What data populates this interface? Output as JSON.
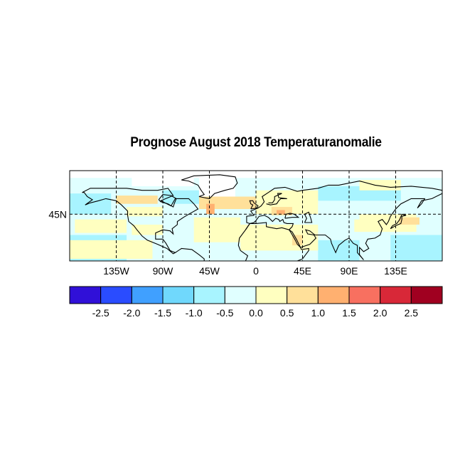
{
  "title": "Prognose August 2018 Temperaturanomalie",
  "map": {
    "projection": "cylindrical equidistant",
    "lon_range": [
      -180,
      180
    ],
    "lat_range": [
      0,
      87
    ],
    "lon_ticks": [
      {
        "lon": -135,
        "label": "135W"
      },
      {
        "lon": -90,
        "label": "90W"
      },
      {
        "lon": -45,
        "label": "45W"
      },
      {
        "lon": 0,
        "label": "0"
      },
      {
        "lon": 45,
        "label": "45E"
      },
      {
        "lon": 90,
        "label": "90E"
      },
      {
        "lon": 135,
        "label": "135E"
      }
    ],
    "lat_ticks": [
      {
        "lat": 45,
        "label": "45N"
      }
    ],
    "grid": "dashed",
    "background_value": -0.25,
    "anomaly_regions": [
      {
        "lon": [
          -180,
          -125
        ],
        "lat": [
          0,
          25
        ],
        "value": -0.75
      },
      {
        "lon": [
          130,
          180
        ],
        "lat": [
          0,
          25
        ],
        "value": -0.75
      },
      {
        "lon": [
          60,
          100
        ],
        "lat": [
          0,
          20
        ],
        "value": -0.75
      },
      {
        "lon": [
          -180,
          -140
        ],
        "lat": [
          45,
          65
        ],
        "value": -0.75
      },
      {
        "lon": [
          60,
          140
        ],
        "lat": [
          58,
          72
        ],
        "value": -0.75
      },
      {
        "lon": [
          -90,
          -55
        ],
        "lat": [
          55,
          68
        ],
        "value": -0.75
      },
      {
        "lon": [
          -175,
          -125
        ],
        "lat": [
          27,
          40
        ],
        "value": 0.25
      },
      {
        "lon": [
          -120,
          -90
        ],
        "lat": [
          25,
          35
        ],
        "value": 0.25
      },
      {
        "lon": [
          -60,
          -15
        ],
        "lat": [
          18,
          42
        ],
        "value": 0.25
      },
      {
        "lon": [
          -55,
          0
        ],
        "lat": [
          50,
          62
        ],
        "value": 0.75
      },
      {
        "lon": [
          -48,
          -40
        ],
        "lat": [
          45,
          55
        ],
        "value": 1.25
      },
      {
        "lon": [
          -135,
          -95
        ],
        "lat": [
          55,
          63
        ],
        "value": 0.75
      },
      {
        "lon": [
          -125,
          -90
        ],
        "lat": [
          43,
          52
        ],
        "value": 0.25
      },
      {
        "lon": [
          0,
          60
        ],
        "lat": [
          45,
          68
        ],
        "value": 0.25
      },
      {
        "lon": [
          15,
          35
        ],
        "lat": [
          44,
          52
        ],
        "value": 0.75
      },
      {
        "lon": [
          20,
          28
        ],
        "lat": [
          45,
          49
        ],
        "value": 1.25
      },
      {
        "lon": [
          -15,
          60
        ],
        "lat": [
          10,
          35
        ],
        "value": 0.25
      },
      {
        "lon": [
          35,
          45
        ],
        "lat": [
          15,
          25
        ],
        "value": 0.75
      },
      {
        "lon": [
          95,
          155
        ],
        "lat": [
          28,
          45
        ],
        "value": 0.25
      },
      {
        "lon": [
          138,
          158
        ],
        "lat": [
          35,
          42
        ],
        "value": 0.75
      },
      {
        "lon": [
          60,
          100
        ],
        "lat": [
          40,
          55
        ],
        "value": -0.25
      },
      {
        "lon": [
          100,
          140
        ],
        "lat": [
          68,
          78
        ],
        "value": 0.25
      },
      {
        "lon": [
          -180,
          -100
        ],
        "lat": [
          2,
          20
        ],
        "value": 0.25
      }
    ],
    "no_data_regions": [
      {
        "lon": [
          -55,
          -20
        ],
        "lat": [
          62,
          84
        ]
      },
      {
        "lon": [
          -120,
          -60
        ],
        "lat": [
          72,
          84
        ]
      },
      {
        "lon": [
          -180,
          180
        ],
        "lat": [
          80,
          87
        ]
      }
    ]
  },
  "colorbar": {
    "labels": [
      "-2.5",
      "-2.0",
      "-1.5",
      "-1.0",
      "-0.5",
      "0.0",
      "0.5",
      "1.0",
      "1.5",
      "2.0",
      "2.5"
    ],
    "boundaries": [
      -2.5,
      -2.0,
      -1.5,
      -1.0,
      -0.5,
      0.0,
      0.5,
      1.0,
      1.5,
      2.0,
      2.5
    ],
    "colors": [
      "#3010d8",
      "#2a4cff",
      "#40a0ff",
      "#70d8fc",
      "#a8f4ff",
      "#e0ffff",
      "#ffffc0",
      "#ffe09a",
      "#ffb070",
      "#f87060",
      "#d82838",
      "#a00020"
    ]
  }
}
